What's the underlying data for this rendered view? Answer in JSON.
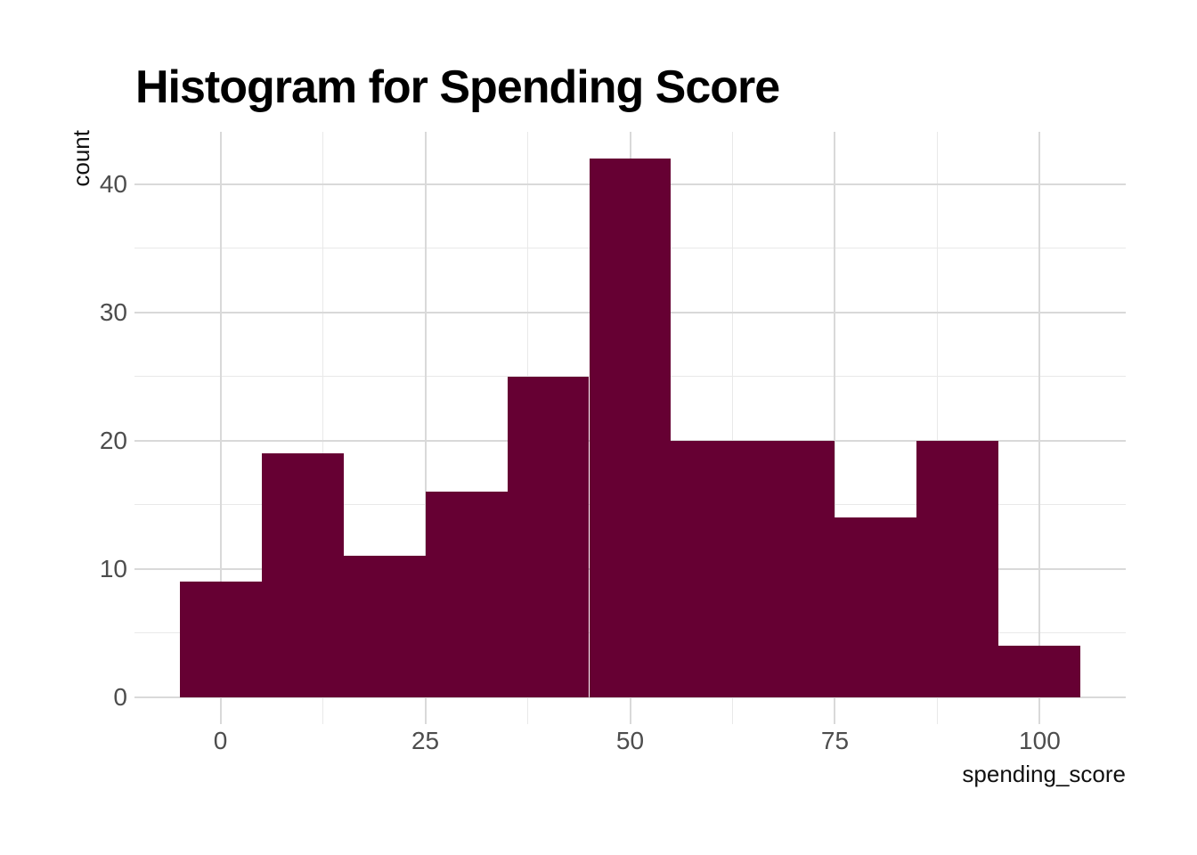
{
  "chart_data": {
    "type": "bar",
    "subtype": "histogram",
    "title": "Histogram for Spending Score",
    "xlabel": "spending_score",
    "ylabel": "count",
    "bin_width": 10,
    "bin_edges": [
      -5,
      5,
      15,
      25,
      35,
      45,
      55,
      65,
      75,
      85,
      95,
      105
    ],
    "bin_centers": [
      0,
      10,
      20,
      30,
      40,
      50,
      60,
      70,
      80,
      90,
      100
    ],
    "values": [
      9,
      19,
      11,
      16,
      25,
      42,
      20,
      20,
      14,
      20,
      4
    ],
    "total_count": 200,
    "x_ticks": [
      0,
      25,
      50,
      75,
      100
    ],
    "y_ticks": [
      0,
      10,
      20,
      30,
      40
    ],
    "x_minor_breaks": [
      12.5,
      37.5,
      62.5,
      87.5
    ],
    "y_minor_breaks": [
      5,
      15,
      25,
      35
    ],
    "xlim": [
      -10.5,
      110.5
    ],
    "ylim": [
      -2.1,
      44.1
    ],
    "grid": true,
    "legend": "none",
    "colors": {
      "bar_fill": "#660033",
      "grid_major": "#d9d9d9",
      "grid_minor": "#e9e9e9",
      "tick_text": "#4d4d4d",
      "axis_title_text": "#111111",
      "title_text": "#000000",
      "background": "#ffffff"
    }
  }
}
